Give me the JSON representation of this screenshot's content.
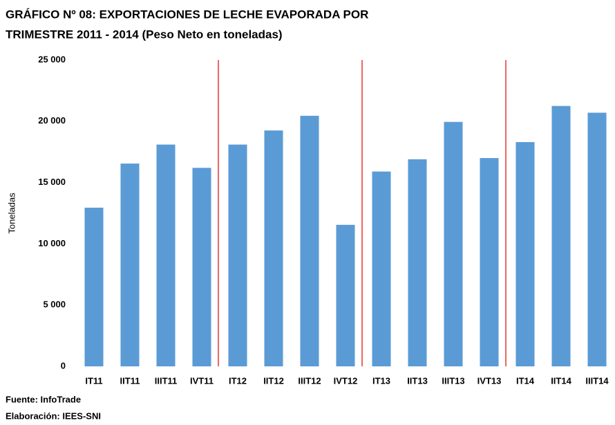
{
  "chart_data": {
    "type": "bar",
    "title": [
      "GRÁFICO Nº 08: EXPORTACIONES DE LECHE EVAPORADA POR",
      "TRIMESTRE  2011 - 2014 (Peso Neto en toneladas)"
    ],
    "y_label": "Toneladas",
    "categories": [
      "IT11",
      "IIT11",
      "IIIT11",
      "IVT11",
      "IT12",
      "IIT12",
      "IIIT12",
      "IVT12",
      "IT13",
      "IIT13",
      "IIIT13",
      "IVT13",
      "IT14",
      "IIT14",
      "IIIT14"
    ],
    "values": [
      12950,
      16550,
      18100,
      16200,
      18100,
      19250,
      20450,
      11550,
      15900,
      16900,
      19950,
      17000,
      18300,
      21250,
      20700
    ],
    "color": "#5b9bd5",
    "ylim": [
      0,
      25000
    ],
    "yticks": [
      0,
      {
        "value": 5000,
        "label": "5 000"
      },
      {
        "value": 10000,
        "label": "10 000"
      },
      {
        "value": 15000,
        "label": "15 000"
      },
      {
        "value": 20000,
        "label": "20 000"
      },
      {
        "value": 25000,
        "label": "25 000"
      }
    ],
    "grid": false,
    "source": "Fuente: InfoTrade",
    "credit": "Elaboración: IEES-SNI"
  }
}
